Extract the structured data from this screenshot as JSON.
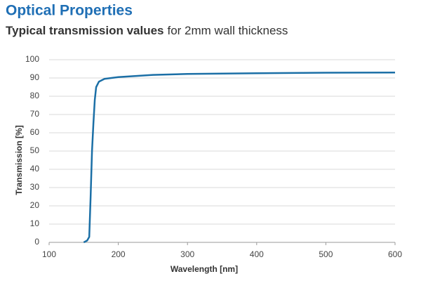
{
  "chart_data": {
    "type": "line",
    "title": "Optical Properties",
    "subtitle": [
      "Typical transmission values",
      "for 2mm wall thickness"
    ],
    "x_label": "Wavelength [nm]",
    "y_label": "Transmission [%]",
    "x": [
      150,
      155,
      158,
      160,
      162,
      164,
      166,
      168,
      172,
      180,
      200,
      250,
      300,
      400,
      500,
      600
    ],
    "series": [
      {
        "name": "Transmission",
        "color": "#1b6fa6",
        "values": [
          0,
          1,
          3,
          25,
          50,
          65,
          78,
          85,
          88,
          89.5,
          90.5,
          91.7,
          92.2,
          92.6,
          92.9,
          93
        ]
      }
    ],
    "xlim": [
      100,
      600
    ],
    "xticks": [
      100,
      200,
      300,
      400,
      500,
      600
    ],
    "ylim": [
      0,
      100
    ],
    "yticks": [
      0,
      10,
      20,
      30,
      40,
      50,
      60,
      70,
      80,
      90,
      100
    ],
    "grid": true
  }
}
